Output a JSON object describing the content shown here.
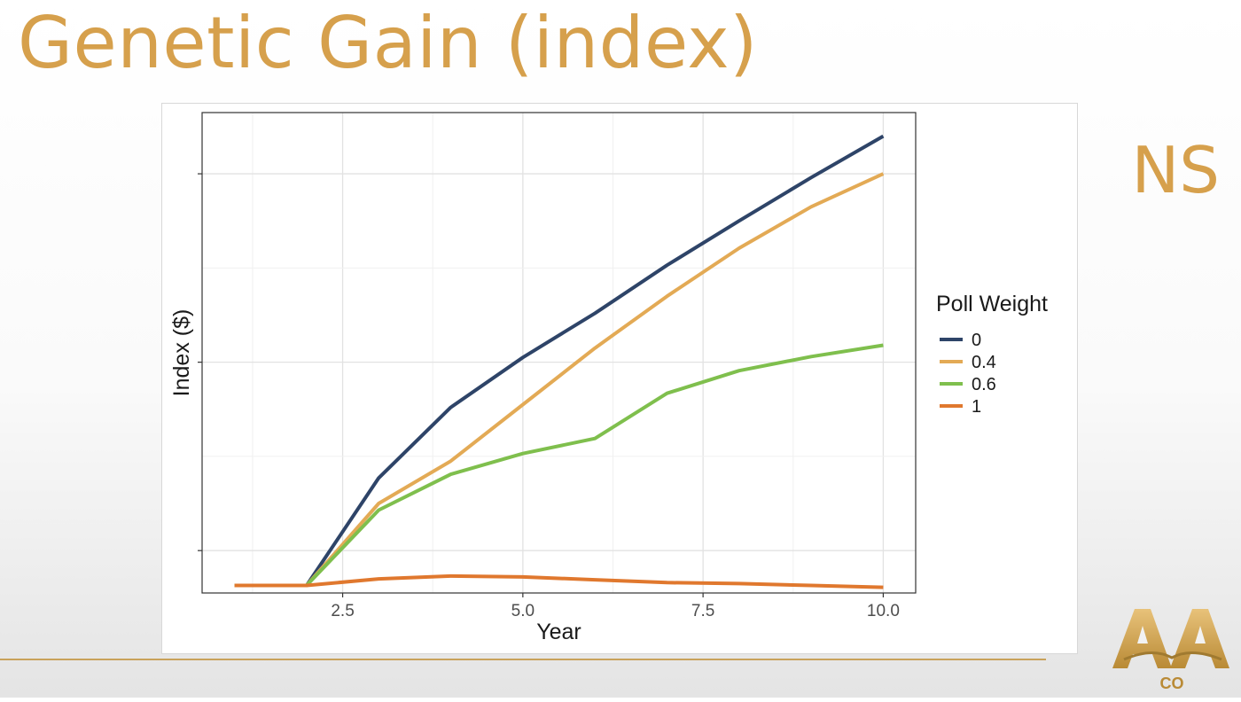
{
  "slide": {
    "title": "Genetic Gain (index)",
    "side_label": "NS",
    "logo_text": "AA CO"
  },
  "colors": {
    "title": "#d6a04c",
    "rule": "#c9a25a"
  },
  "chart_data": {
    "type": "line",
    "title": "",
    "xlabel": "Year",
    "ylabel": "Index ($)",
    "xlim": [
      0.55,
      10.45
    ],
    "ylim": [
      -0.45,
      4.65
    ],
    "x_ticks": [
      2.5,
      5.0,
      7.5,
      10.0
    ],
    "x_tick_labels": [
      "2.5",
      "5.0",
      "7.5",
      "10.0"
    ],
    "y_ticks": [
      0,
      2,
      4
    ],
    "y_tick_labels": [
      "",
      "",
      ""
    ],
    "grid": true,
    "legend_title": "Poll Weight",
    "legend_position": "right",
    "x": [
      1,
      2,
      3,
      4,
      5,
      6,
      7,
      8,
      9,
      10
    ],
    "series": [
      {
        "name": "0",
        "color": "#2e4468",
        "values": [
          -0.37,
          -0.37,
          0.77,
          1.52,
          2.05,
          2.52,
          3.03,
          3.5,
          3.96,
          4.4
        ]
      },
      {
        "name": "0.4",
        "color": "#e3aa55",
        "values": [
          -0.37,
          -0.37,
          0.5,
          0.95,
          1.55,
          2.15,
          2.7,
          3.21,
          3.65,
          4.0
        ]
      },
      {
        "name": "0.6",
        "color": "#7fbf4d",
        "values": [
          -0.37,
          -0.37,
          0.43,
          0.81,
          1.03,
          1.19,
          1.67,
          1.91,
          2.06,
          2.18
        ]
      },
      {
        "name": "1",
        "color": "#e0782e",
        "values": [
          -0.37,
          -0.37,
          -0.3,
          -0.27,
          -0.28,
          -0.31,
          -0.34,
          -0.35,
          -0.37,
          -0.39
        ]
      }
    ]
  }
}
